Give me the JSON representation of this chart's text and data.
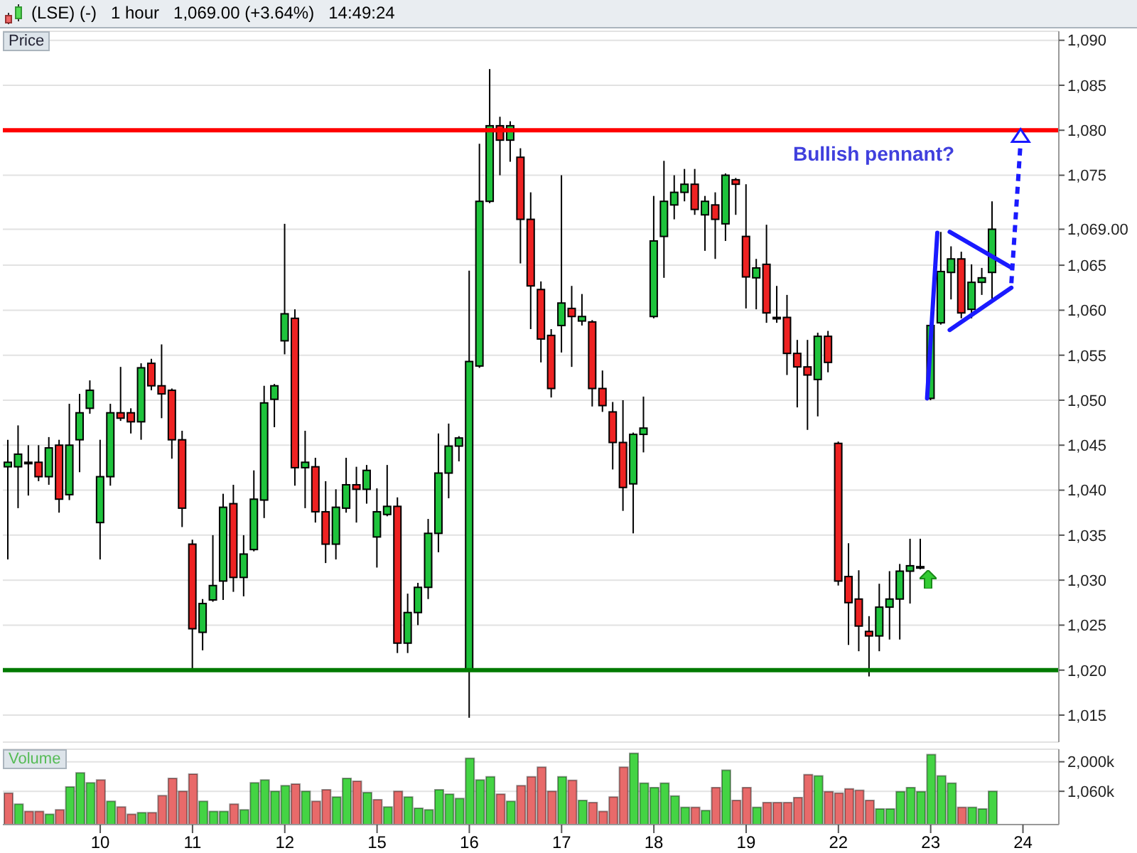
{
  "chart_data": [
    {
      "type": "candlestick",
      "title": "(LSE) (-)   1 hour   1,069.00 (+3.64%)   14:49:24",
      "ylabel": "Price",
      "annotations": [
        "Bullish pennant?"
      ],
      "categories": [
        null,
        null,
        null,
        null,
        null,
        null,
        null,
        null,
        null,
        "10",
        null,
        null,
        null,
        null,
        null,
        null,
        null,
        null,
        "11",
        null,
        null,
        null,
        null,
        null,
        null,
        null,
        null,
        "12",
        null,
        null,
        null,
        null,
        null,
        null,
        null,
        null,
        "15",
        null,
        null,
        null,
        null,
        null,
        null,
        null,
        null,
        "16",
        null,
        null,
        null,
        null,
        null,
        null,
        null,
        null,
        "17",
        null,
        null,
        null,
        null,
        null,
        null,
        null,
        null,
        "18",
        null,
        null,
        null,
        null,
        null,
        null,
        null,
        null,
        "19",
        null,
        null,
        null,
        null,
        null,
        null,
        null,
        null,
        "22",
        null,
        null,
        null,
        null,
        null,
        null,
        null,
        null,
        "23",
        null,
        null,
        null,
        null,
        null,
        null,
        null,
        null,
        "24",
        null,
        null,
        null
      ],
      "ohlc": [
        [
          1042.6,
          1045.6,
          1032.3,
          1043.1
        ],
        [
          1042.6,
          1047.2,
          1038.0,
          1044.0
        ],
        [
          1043.1,
          1045.0,
          1039.4,
          1043.1
        ],
        [
          1043.1,
          1045.0,
          1041.0,
          1041.5
        ],
        [
          1041.5,
          1045.9,
          1040.6,
          1044.7
        ],
        [
          1045.0,
          1045.6,
          1037.5,
          1039.0
        ],
        [
          1039.5,
          1049.6,
          1038.9,
          1045.0
        ],
        [
          1045.6,
          1050.7,
          1042.0,
          1048.6
        ],
        [
          1049.1,
          1052.2,
          1048.5,
          1051.1
        ],
        [
          1036.4,
          1045.6,
          1032.3,
          1041.5
        ],
        [
          1041.5,
          1049.6,
          1040.5,
          1048.6
        ],
        [
          1048.6,
          1053.7,
          1047.7,
          1048.0
        ],
        [
          1048.6,
          1049.1,
          1046.3,
          1047.6
        ],
        [
          1047.6,
          1054.1,
          1045.6,
          1053.6
        ],
        [
          1054.1,
          1054.6,
          1051.1,
          1051.6
        ],
        [
          1051.6,
          1056.2,
          1048.0,
          1050.7
        ],
        [
          1051.1,
          1051.3,
          1043.5,
          1045.6
        ],
        [
          1045.6,
          1046.6,
          1035.9,
          1038.0
        ],
        [
          1034.0,
          1034.5,
          1020.1,
          1024.6
        ],
        [
          1024.2,
          1027.9,
          1022.2,
          1027.4
        ],
        [
          1027.8,
          1035.0,
          1027.6,
          1029.4
        ],
        [
          1029.9,
          1039.6,
          1027.8,
          1038.1
        ],
        [
          1038.5,
          1040.6,
          1028.7,
          1030.3
        ],
        [
          1030.3,
          1035.0,
          1028.2,
          1032.9
        ],
        [
          1033.4,
          1042.2,
          1033.2,
          1039.0
        ],
        [
          1038.9,
          1051.6,
          1036.9,
          1049.7
        ],
        [
          1050.1,
          1051.8,
          1047.0,
          1051.6
        ],
        [
          1056.6,
          1069.6,
          1055.1,
          1059.6
        ],
        [
          1059.1,
          1060.1,
          1040.5,
          1042.5
        ],
        [
          1042.5,
          1046.6,
          1038.0,
          1043.1
        ],
        [
          1042.6,
          1043.6,
          1036.4,
          1037.6
        ],
        [
          1037.6,
          1041.0,
          1031.9,
          1034.0
        ],
        [
          1034.0,
          1040.1,
          1032.3,
          1038.1
        ],
        [
          1038.0,
          1043.6,
          1037.5,
          1040.6
        ],
        [
          1040.6,
          1042.6,
          1036.4,
          1040.1
        ],
        [
          1040.1,
          1042.8,
          1038.5,
          1042.2
        ],
        [
          1034.8,
          1040.2,
          1031.4,
          1037.6
        ],
        [
          1037.3,
          1042.8,
          1037.1,
          1038.2
        ],
        [
          1038.2,
          1039.2,
          1021.9,
          1023.0
        ],
        [
          1023.0,
          1028.5,
          1021.9,
          1026.4
        ],
        [
          1026.4,
          1029.7,
          1025.0,
          1029.2
        ],
        [
          1029.2,
          1036.8,
          1027.9,
          1035.2
        ],
        [
          1035.2,
          1046.3,
          1033.1,
          1041.9
        ],
        [
          1041.9,
          1047.4,
          1039.1,
          1044.9
        ],
        [
          1044.9,
          1046.0,
          1043.2,
          1045.8
        ],
        [
          1019.9,
          1064.4,
          1014.7,
          1054.3
        ],
        [
          1053.8,
          1078.5,
          1053.6,
          1072.1
        ],
        [
          1072.1,
          1086.8,
          1071.9,
          1080.5
        ],
        [
          1080.5,
          1081.5,
          1075.0,
          1078.9
        ],
        [
          1078.9,
          1081.0,
          1076.5,
          1080.5
        ],
        [
          1077.0,
          1078.0,
          1065.2,
          1070.1
        ],
        [
          1070.1,
          1073.1,
          1057.9,
          1062.7
        ],
        [
          1062.3,
          1063.2,
          1054.2,
          1056.8
        ],
        [
          1057.2,
          1057.9,
          1050.3,
          1051.3
        ],
        [
          1058.3,
          1075.0,
          1055.3,
          1060.8
        ],
        [
          1060.2,
          1062.7,
          1053.7,
          1059.3
        ],
        [
          1058.8,
          1061.8,
          1058.3,
          1059.3
        ],
        [
          1058.7,
          1058.9,
          1049.3,
          1051.3
        ],
        [
          1051.3,
          1053.3,
          1048.7,
          1049.4
        ],
        [
          1048.7,
          1049.8,
          1042.3,
          1045.3
        ],
        [
          1045.3,
          1050.0,
          1037.7,
          1040.3
        ],
        [
          1040.7,
          1046.4,
          1035.2,
          1046.2
        ],
        [
          1046.2,
          1050.4,
          1044.2,
          1046.9
        ],
        [
          1059.3,
          1072.7,
          1059.1,
          1067.7
        ],
        [
          1068.2,
          1076.6,
          1063.6,
          1072.1
        ],
        [
          1071.7,
          1075.0,
          1070.1,
          1073.1
        ],
        [
          1073.1,
          1075.7,
          1072.1,
          1074.0
        ],
        [
          1074.0,
          1075.7,
          1070.6,
          1071.2
        ],
        [
          1070.6,
          1072.7,
          1066.6,
          1072.1
        ],
        [
          1071.7,
          1073.1,
          1065.7,
          1070.1
        ],
        [
          1069.6,
          1075.2,
          1067.7,
          1075.0
        ],
        [
          1074.5,
          1074.7,
          1070.6,
          1074.0
        ],
        [
          1068.2,
          1074.0,
          1060.2,
          1063.7
        ],
        [
          1063.6,
          1065.7,
          1060.1,
          1064.7
        ],
        [
          1065.1,
          1069.5,
          1058.6,
          1059.7
        ],
        [
          1059.2,
          1062.7,
          1058.6,
          1059.2
        ],
        [
          1059.2,
          1061.7,
          1052.8,
          1055.2
        ],
        [
          1055.2,
          1056.7,
          1049.2,
          1053.7
        ],
        [
          1053.7,
          1056.7,
          1046.7,
          1052.8
        ],
        [
          1052.3,
          1057.5,
          1048.2,
          1057.1
        ],
        [
          1057.1,
          1057.7,
          1053.1,
          1054.2
        ],
        [
          1045.2,
          1045.4,
          1029.4,
          1029.9
        ],
        [
          1030.4,
          1034.1,
          1022.8,
          1027.5
        ],
        [
          1027.9,
          1031.1,
          1022.1,
          1024.9
        ],
        [
          1024.3,
          1026.0,
          1019.3,
          1023.8
        ],
        [
          1023.8,
          1029.6,
          1022.1,
          1027.0
        ],
        [
          1027.0,
          1031.0,
          1023.4,
          1027.9
        ],
        [
          1027.9,
          1031.8,
          1023.4,
          1031.0
        ],
        [
          1031.0,
          1034.6,
          1027.4,
          1031.6
        ],
        [
          1031.5,
          1034.6,
          1031.2,
          1031.5
        ],
        [
          1050.2,
          1058.5,
          1050.0,
          1058.3
        ],
        [
          1058.6,
          1068.7,
          1058.4,
          1064.3
        ],
        [
          1064.2,
          1067.1,
          1061.2,
          1065.7
        ],
        [
          1065.7,
          1066.5,
          1059.1,
          1059.7
        ],
        [
          1060.1,
          1065.1,
          1059.1,
          1063.1
        ],
        [
          1063.1,
          1064.7,
          1061.7,
          1063.6
        ],
        [
          1064.2,
          1072.1,
          1061.2,
          1069.0
        ],
        null,
        null,
        null,
        null,
        null,
        null
      ],
      "ylim": [
        1012,
        1091
      ],
      "yticks": [
        {
          "value": 1015,
          "label": "1,015"
        },
        {
          "value": 1020,
          "label": "1,020"
        },
        {
          "value": 1025,
          "label": "1,025"
        },
        {
          "value": 1030,
          "label": "1,030"
        },
        {
          "value": 1035,
          "label": "1,035"
        },
        {
          "value": 1040,
          "label": "1,040"
        },
        {
          "value": 1045,
          "label": "1,045"
        },
        {
          "value": 1050,
          "label": "1,050"
        },
        {
          "value": 1055,
          "label": "1,055"
        },
        {
          "value": 1060,
          "label": "1,060"
        },
        {
          "value": 1065,
          "label": "1,065"
        },
        {
          "value": 1069,
          "label": "1,069.00"
        },
        {
          "value": 1075,
          "label": "1,075"
        },
        {
          "value": 1080,
          "label": "1,080"
        },
        {
          "value": 1085,
          "label": "1,085"
        },
        {
          "value": 1090,
          "label": "1,090"
        }
      ],
      "grid": "y",
      "tick_labels": "y",
      "ref_lines": [
        {
          "axis": "y",
          "value": 1080,
          "color": "#ff0000"
        },
        {
          "axis": "y",
          "value": 1020,
          "color": "#007a00"
        }
      ]
    },
    {
      "type": "bar",
      "ylabel": "Volume",
      "categories": [
        null,
        null,
        null,
        null,
        null,
        null,
        null,
        null,
        null,
        "10",
        null,
        null,
        null,
        null,
        null,
        null,
        null,
        null,
        "11",
        null,
        null,
        null,
        null,
        null,
        null,
        null,
        null,
        "12",
        null,
        null,
        null,
        null,
        null,
        null,
        null,
        null,
        "15",
        null,
        null,
        null,
        null,
        null,
        null,
        null,
        null,
        "16",
        null,
        null,
        null,
        null,
        null,
        null,
        null,
        null,
        "17",
        null,
        null,
        null,
        null,
        null,
        null,
        null,
        null,
        "18",
        null,
        null,
        null,
        null,
        null,
        null,
        null,
        null,
        "19",
        null,
        null,
        null,
        null,
        null,
        null,
        null,
        null,
        "22",
        null,
        null,
        null,
        null,
        null,
        null,
        null,
        null,
        "23",
        null,
        null,
        null,
        null,
        null,
        null,
        null,
        null,
        "24",
        null,
        null,
        null
      ],
      "values": [
        1000,
        650,
        420,
        420,
        330,
        470,
        1200,
        1650,
        1330,
        1420,
        740,
        560,
        330,
        380,
        380,
        920,
        1470,
        1060,
        1610,
        740,
        420,
        420,
        650,
        470,
        1330,
        1420,
        1060,
        1240,
        1290,
        1060,
        740,
        1110,
        880,
        1470,
        1380,
        1020,
        790,
        560,
        1060,
        880,
        520,
        470,
        1110,
        970,
        830,
        2110,
        1420,
        1520,
        970,
        740,
        1240,
        1520,
        1830,
        1060,
        1520,
        1410,
        770,
        700,
        420,
        880,
        1830,
        2270,
        1320,
        1180,
        1320,
        910,
        550,
        550,
        450,
        1180,
        1730,
        770,
        1180,
        550,
        700,
        700,
        700,
        860,
        1590,
        1550,
        1050,
        1000,
        1140,
        1090,
        770,
        500,
        500,
        1050,
        1180,
        1050,
        2230,
        1550,
        1320,
        550,
        550,
        500,
        1060,
        null,
        null,
        null,
        null,
        null,
        null
      ],
      "colors": [
        "#e86a6a",
        "#44d444",
        "#e86a6a",
        "#e86a6a",
        "#44d444",
        "#e86a6a",
        "#44d444",
        "#44d444",
        "#44d444",
        "#e86a6a",
        "#44d444",
        "#e86a6a",
        "#e86a6a",
        "#44d444",
        "#e86a6a",
        "#e86a6a",
        "#e86a6a",
        "#e86a6a",
        "#e86a6a",
        "#44d444",
        "#44d444",
        "#44d444",
        "#e86a6a",
        "#44d444",
        "#44d444",
        "#44d444",
        "#44d444",
        "#44d444",
        "#e86a6a",
        "#44d444",
        "#e86a6a",
        "#e86a6a",
        "#44d444",
        "#44d444",
        "#e86a6a",
        "#44d444",
        "#e86a6a",
        "#44d444",
        "#e86a6a",
        "#44d444",
        "#44d444",
        "#44d444",
        "#44d444",
        "#44d444",
        "#44d444",
        "#44d444",
        "#44d444",
        "#44d444",
        "#e86a6a",
        "#44d444",
        "#e86a6a",
        "#e86a6a",
        "#e86a6a",
        "#e86a6a",
        "#44d444",
        "#e86a6a",
        "#44d444",
        "#e86a6a",
        "#e86a6a",
        "#e86a6a",
        "#e86a6a",
        "#44d444",
        "#44d444",
        "#44d444",
        "#44d444",
        "#44d444",
        "#44d444",
        "#e86a6a",
        "#44d444",
        "#e86a6a",
        "#44d444",
        "#e86a6a",
        "#e86a6a",
        "#44d444",
        "#e86a6a",
        "#e86a6a",
        "#e86a6a",
        "#e86a6a",
        "#e86a6a",
        "#44d444",
        "#e86a6a",
        "#e86a6a",
        "#e86a6a",
        "#e86a6a",
        "#e86a6a",
        "#44d444",
        "#44d444",
        "#44d444",
        "#44d444",
        "#44d444",
        "#44d444",
        "#44d444",
        "#44d444",
        "#e86a6a",
        "#44d444",
        "#44d444",
        "#44d444",
        null,
        null,
        null,
        null,
        null,
        null
      ],
      "ylim": [
        0,
        2400
      ],
      "yticks": [
        {
          "value": 1060,
          "label": "1,060k"
        },
        {
          "value": 2000,
          "label": "2,000k"
        }
      ],
      "grid": "y"
    }
  ]
}
